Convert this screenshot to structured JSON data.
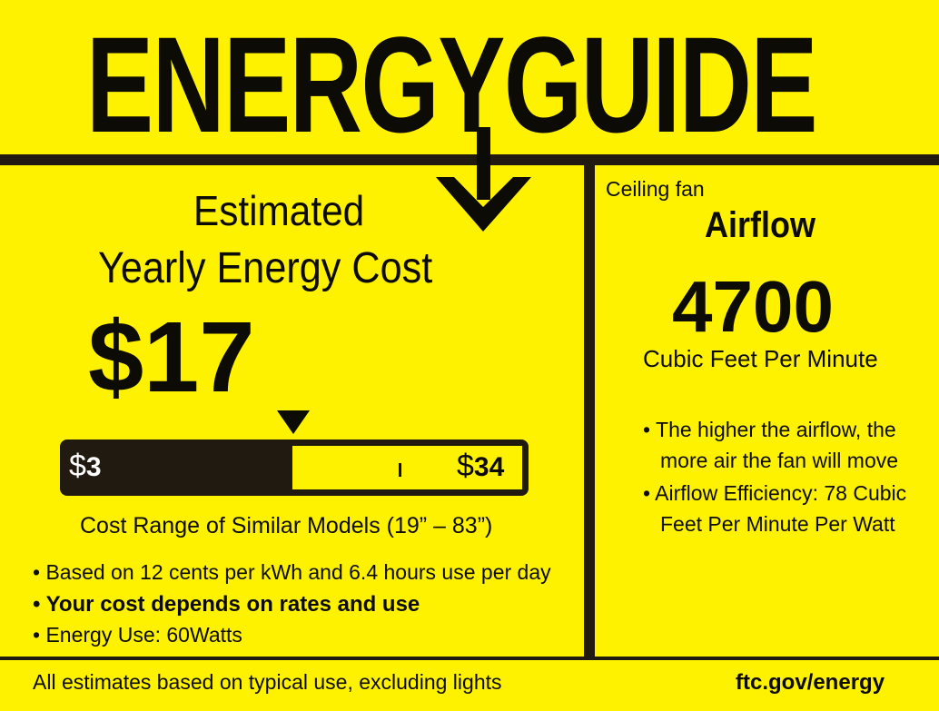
{
  "logo": "ENERGYGUIDE",
  "left": {
    "heading_line1": "Estimated",
    "heading_line2": "Yearly Energy Cost",
    "cost": "$17",
    "range": {
      "min": "3",
      "max": "34",
      "currency": "$",
      "current": 17,
      "min_value": 3,
      "max_value": 34
    },
    "range_caption": "Cost Range of Similar Models (19” – 83”)",
    "bullets": [
      "• Based on 12 cents per kWh and 6.4 hours use per day",
      "• Your cost depends on rates and use",
      "• Energy Use: 60Watts"
    ]
  },
  "right": {
    "category": "Ceiling fan",
    "heading": "Airflow",
    "value": "4700",
    "unit": "Cubic Feet Per Minute",
    "bullet1_line1": "• The higher the airflow, the",
    "bullet1_line2": "more air the fan will move",
    "bullet2_line1": "• Airflow Efficiency: 78 Cubic",
    "bullet2_line2": "Feet Per Minute Per Watt"
  },
  "footer": {
    "note": "All estimates based on typical use, excluding lights",
    "link": "ftc.gov/energy"
  },
  "colors": {
    "background": "#fff200",
    "ink": "#201a10"
  }
}
